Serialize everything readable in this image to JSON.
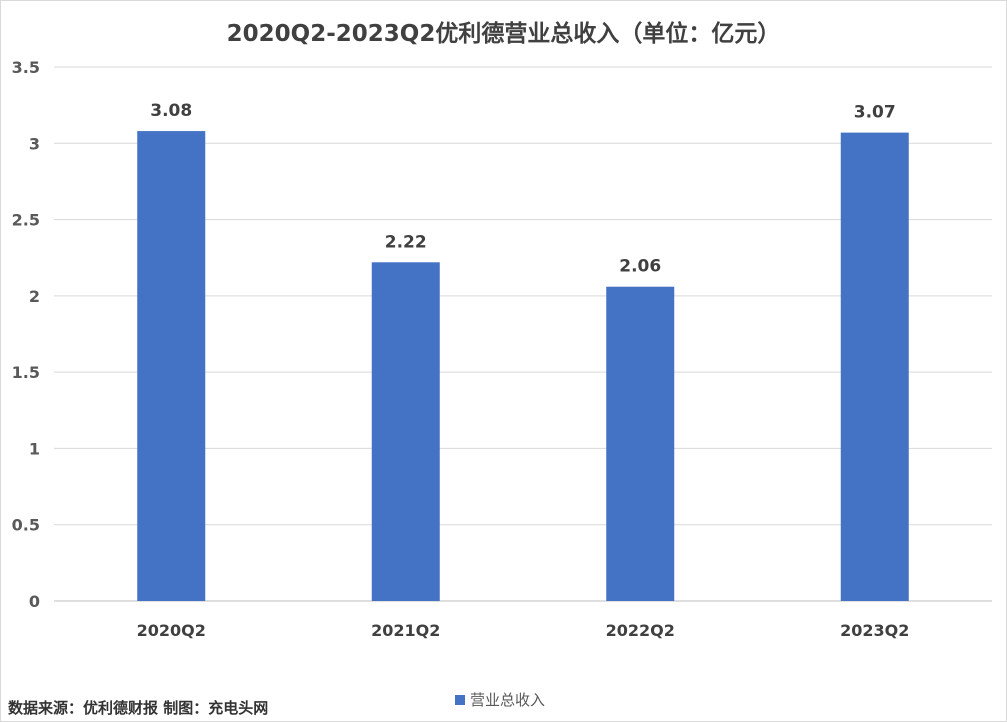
{
  "chart_data": {
    "type": "bar",
    "title": "2020Q2-2023Q2优利德营业总收入（单位：亿元）",
    "categories": [
      "2020Q2",
      "2021Q2",
      "2022Q2",
      "2023Q2"
    ],
    "series": [
      {
        "name": "营业总收入",
        "values": [
          3.08,
          2.22,
          2.06,
          3.07
        ],
        "color": "#4472c4"
      }
    ],
    "data_labels": [
      "3.08",
      "2.22",
      "2.06",
      "3.07"
    ],
    "y_ticks": [
      "0",
      "0.5",
      "1",
      "1.5",
      "2",
      "2.5",
      "3",
      "3.5"
    ],
    "ylim": [
      0,
      3.5
    ],
    "grid": true,
    "legend_position": "bottom"
  },
  "source_note": "数据来源：优利德财报  制图：充电头网"
}
